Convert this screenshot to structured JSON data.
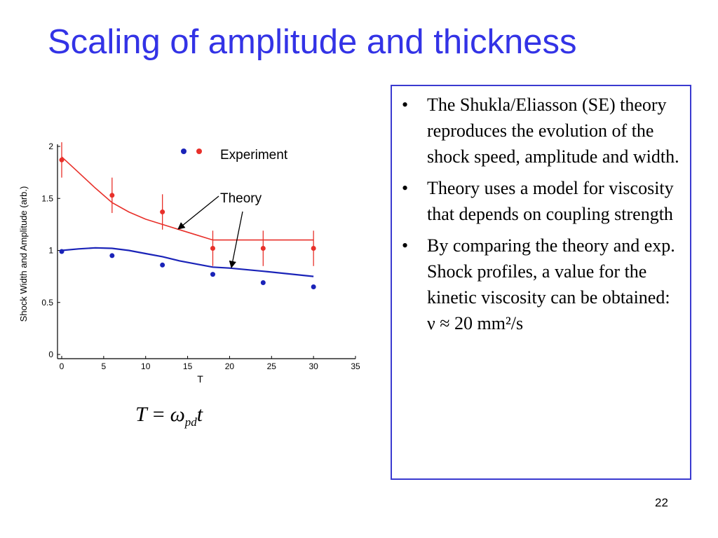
{
  "slide": {
    "title": "Scaling of amplitude and thickness",
    "page_number": "22",
    "formula": {
      "lhs": "T",
      "eq": "=",
      "omega": "ω",
      "sub": "pd",
      "t": "t"
    },
    "bullets": [
      {
        "text": "The Shukla/Eliasson (SE) theory reproduces the evolution of the shock speed, amplitude and width."
      },
      {
        "text": "Theory uses a model for viscosity that depends on coupling strength"
      },
      {
        "text": "By comparing the theory and exp. Shock profiles, a value for the kinetic viscosity can be obtained: ν ≈ 20 mm²/s"
      }
    ],
    "bullet_symbol": "•"
  },
  "colors": {
    "title": "#3333e6",
    "box_border": "#3a3ad0",
    "red_series": "#e8302a",
    "blue_series": "#1a23b8"
  },
  "chart_data": {
    "type": "scatter",
    "xlabel": "T",
    "ylabel": "Shock Width and Amplitude (arb.)",
    "xlim": [
      0,
      35
    ],
    "ylim": [
      0,
      2
    ],
    "xticks": [
      "0",
      "5",
      "10",
      "15",
      "20",
      "25",
      "30",
      "35"
    ],
    "yticks": [
      "0",
      "0.5",
      "1",
      "1.5",
      "2"
    ],
    "legend": {
      "experiment_label": "Experiment",
      "theory_label": "Theory"
    },
    "experiment_red": {
      "x": [
        0,
        6,
        12,
        18,
        24,
        30
      ],
      "y": [
        1.87,
        1.53,
        1.37,
        1.02,
        1.02,
        1.02
      ],
      "err": [
        0.17,
        0.17,
        0.17,
        0.17,
        0.17,
        0.17
      ]
    },
    "experiment_blue": {
      "x": [
        0,
        6,
        12,
        18,
        24,
        30
      ],
      "y": [
        0.99,
        0.95,
        0.86,
        0.77,
        0.69,
        0.65
      ]
    },
    "theory_red": {
      "x": [
        0,
        2,
        4,
        6,
        8,
        10,
        12,
        14,
        16,
        18,
        20,
        24,
        30
      ],
      "y": [
        1.9,
        1.75,
        1.6,
        1.46,
        1.37,
        1.3,
        1.25,
        1.2,
        1.15,
        1.1,
        1.1,
        1.1,
        1.1
      ]
    },
    "theory_blue": {
      "x": [
        0,
        2,
        4,
        6,
        8,
        10,
        12,
        14,
        16,
        18,
        20,
        24,
        30
      ],
      "y": [
        1.0,
        1.015,
        1.025,
        1.02,
        1.0,
        0.97,
        0.94,
        0.9,
        0.87,
        0.84,
        0.83,
        0.8,
        0.75
      ]
    }
  }
}
